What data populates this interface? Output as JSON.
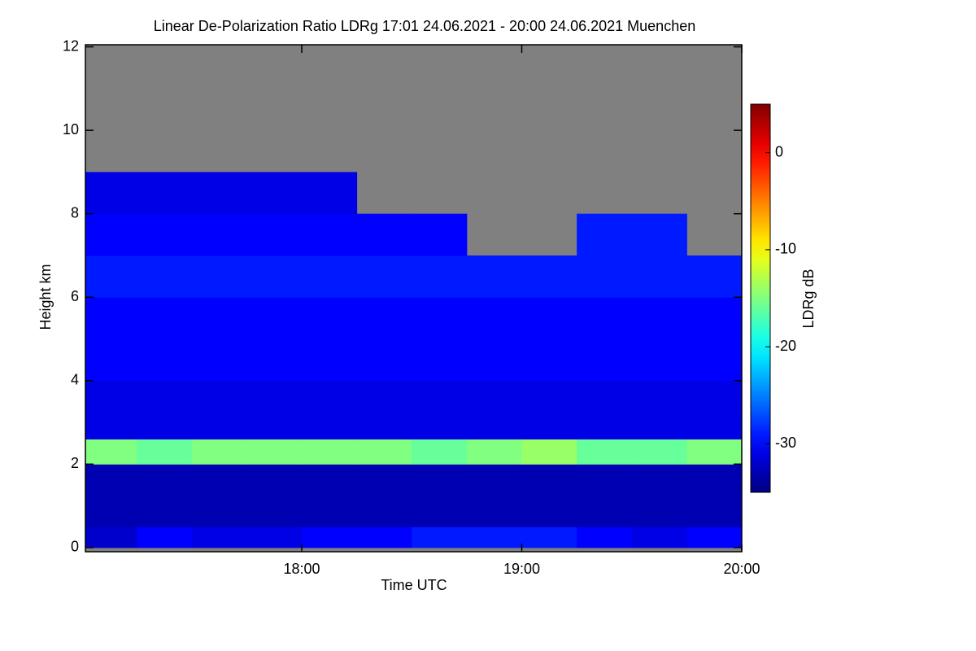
{
  "chart_data": {
    "type": "heatmap",
    "title": "Linear De-Polarization Ratio LDRg   17:01 24.06.2021 - 20:00 24.06.2021 Muenchen",
    "x_label": "Time UTC",
    "y_label": "Height km",
    "colorbar_label": "LDRg dB",
    "colormap": "jet",
    "missing_color": "#808080",
    "xlim": [
      17.0167,
      20.0
    ],
    "xticks": [
      {
        "value": 18,
        "label": "18:00"
      },
      {
        "value": 19,
        "label": "19:00"
      },
      {
        "value": 20,
        "label": "20:00"
      }
    ],
    "ylim": [
      -0.1,
      12.05
    ],
    "yticks": [
      0,
      2,
      4,
      6,
      8,
      10,
      12
    ],
    "zlim": [
      -35,
      5
    ],
    "zticks": [
      0,
      -10,
      -20,
      -30
    ],
    "x_bins": [
      17.0167,
      17.25,
      17.5,
      17.75,
      18,
      18.25,
      18.5,
      18.75,
      19,
      19.25,
      19.5,
      19.75,
      20
    ],
    "y_bins": [
      0,
      0.5,
      2,
      2.6,
      4,
      6,
      7,
      8,
      9,
      12
    ],
    "z": [
      [
        -32,
        -30,
        -31,
        -31,
        -30,
        -30,
        -29,
        -29,
        -29,
        -30,
        -31,
        -30
      ],
      [
        -33,
        -33,
        -33,
        -33,
        -33,
        -33,
        -33,
        -33,
        -33,
        -33,
        -33,
        -33
      ],
      [
        -15,
        -16,
        -15,
        -15,
        -15,
        -15,
        -16,
        -15,
        -14,
        -16,
        -16,
        -15
      ],
      [
        -31,
        -31,
        -31,
        -31,
        -31,
        -31,
        -31,
        -31,
        -31,
        -31,
        -31,
        -31
      ],
      [
        -30,
        -30,
        -30,
        -30,
        -30,
        -30,
        -30,
        -30,
        -30,
        -30,
        -30,
        -30
      ],
      [
        -29,
        -29,
        -29,
        -29,
        -29,
        -29,
        -29,
        -29,
        -29,
        -29,
        -29,
        -29
      ],
      [
        -30,
        -30,
        -30,
        -30,
        -30,
        -30,
        -30,
        null,
        null,
        -29,
        -29,
        null
      ],
      [
        -31,
        -31,
        -31,
        -31,
        -31,
        null,
        null,
        null,
        null,
        null,
        null,
        null
      ],
      [
        null,
        null,
        null,
        null,
        null,
        null,
        null,
        null,
        null,
        null,
        null,
        null
      ]
    ]
  }
}
